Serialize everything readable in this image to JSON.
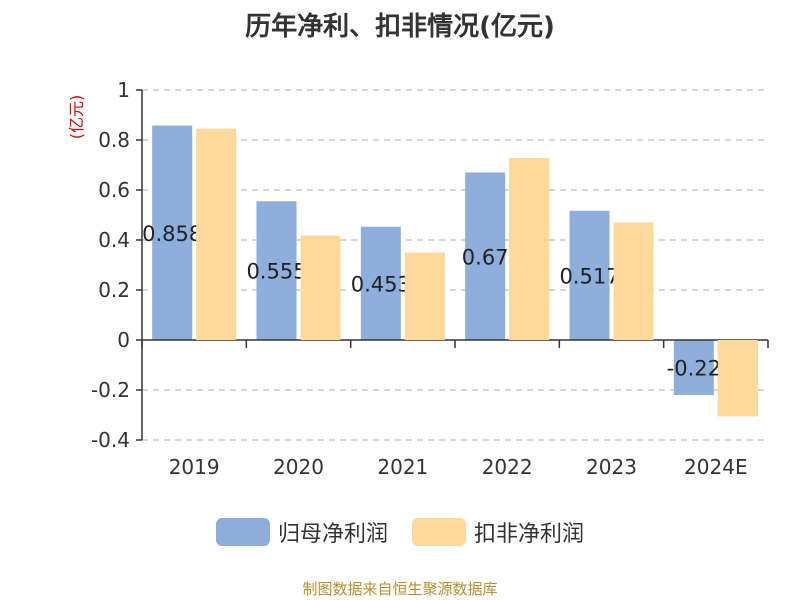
{
  "title": "历年净利、扣非情况(亿元)",
  "source_note": "制图数据来自恒生聚源数据库",
  "chart_data": {
    "type": "bar",
    "title": "历年净利、扣非情况(亿元)",
    "ylabel": "(亿元)",
    "xlabel": "",
    "categories": [
      "2019",
      "2020",
      "2021",
      "2022",
      "2023",
      "2024E"
    ],
    "ylim": [
      -0.4,
      1
    ],
    "yticks": [
      1,
      0.8,
      0.6,
      0.4,
      0.2,
      0,
      -0.2,
      -0.4
    ],
    "ytick_labels": [
      "1",
      "0.8",
      "0.6",
      "0.4",
      "0.2",
      "0",
      "-0.2",
      "-0.4"
    ],
    "grid": true,
    "legend_position": "bottom",
    "series": [
      {
        "name": "归母净利润",
        "color": "#8eaedb",
        "values": [
          0.858,
          0.555,
          0.453,
          0.67,
          0.517,
          -0.22
        ],
        "labels": [
          "0.858",
          "0.555",
          "0.453",
          "0.67",
          "0.517",
          "-0.22"
        ]
      },
      {
        "name": "扣非净利润",
        "color": "#fed99b",
        "values": [
          0.845,
          0.418,
          0.35,
          0.728,
          0.47,
          -0.305
        ],
        "labels": []
      }
    ]
  }
}
